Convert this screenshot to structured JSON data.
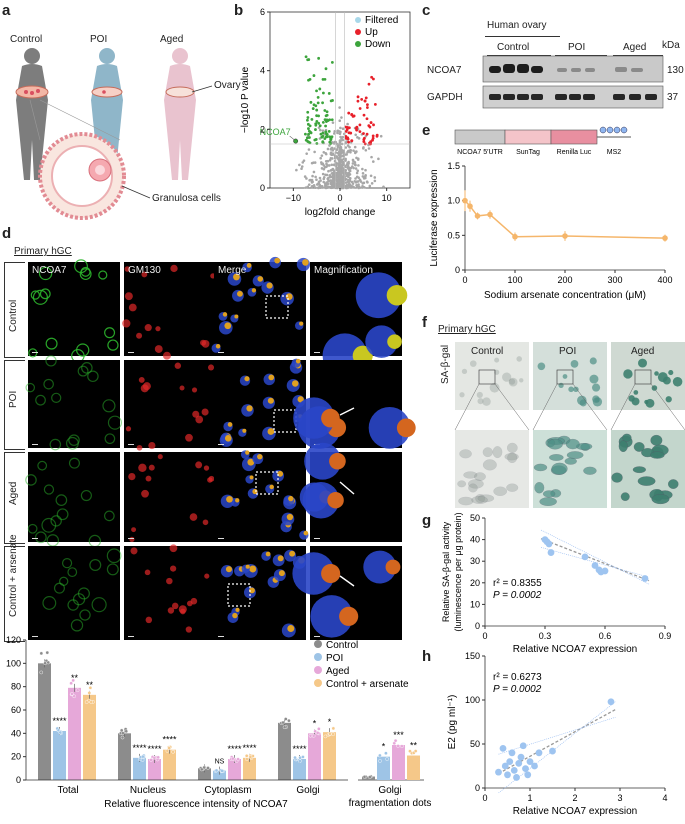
{
  "panels": {
    "a": "a",
    "b": "b",
    "c": "c",
    "d": "d",
    "e": "e",
    "f": "f",
    "g": "g",
    "h": "h"
  },
  "panel_a": {
    "groups": [
      "Control",
      "POI",
      "Aged"
    ],
    "ovary_label": "Ovary",
    "granulosa_label": "Granulosa cells",
    "colors": {
      "control": "#7d7d7d",
      "poi": "#8fb6c9",
      "aged": "#e9c3cf"
    }
  },
  "panel_b": {
    "legend": [
      "Filtered",
      "Up",
      "Down"
    ],
    "legend_colors": [
      "#a8d8ea",
      "#e8202a",
      "#3ca43c"
    ],
    "gene_label": "NCOA7",
    "xlabel": "log2fold change",
    "ylabel": "−log10 P value",
    "x_ticks": [
      "−10",
      "0",
      "10"
    ],
    "y_ticks": [
      "0",
      "2",
      "4",
      "6"
    ]
  },
  "panel_c": {
    "title": "Human ovary",
    "groups": [
      "Control",
      "POI",
      "Aged"
    ],
    "kda_label": "kDa",
    "rows": [
      {
        "name": "NCOA7",
        "kda": "130"
      },
      {
        "name": "GAPDH",
        "kda": "37"
      }
    ]
  },
  "panel_d": {
    "title": "Primary hGC",
    "columns": [
      "NCOA7",
      "GM130",
      "Merge",
      "Magnification"
    ],
    "rows": [
      "Control",
      "POI",
      "Aged",
      "Control + arsenate"
    ]
  },
  "panel_e": {
    "construct": [
      "NCOA7 5′UTR",
      "SunTag",
      "Renilla Luc",
      "MS2"
    ],
    "xlabel": "Sodium arsenate concentration (μM)",
    "ylabel": "Luciferase expression",
    "x_ticks": [
      "0",
      "100",
      "200",
      "300",
      "400"
    ],
    "y_ticks": [
      "0",
      "0.5",
      "1.0",
      "1.5"
    ]
  },
  "panel_f": {
    "title": "Primary hGC",
    "row_label": "SA-β-gal",
    "columns": [
      "Control",
      "POI",
      "Aged"
    ]
  },
  "panel_g": {
    "r2": "r² = 0.8355",
    "p": "P = 0.0002",
    "xlabel": "Relative NCOA7 expression",
    "ylabel_1": "Relative SA-β-gal activity",
    "ylabel_2": "(luminescence per μg protein)",
    "x_ticks": [
      "0",
      "0.3",
      "0.6",
      "0.9"
    ],
    "y_ticks": [
      "0",
      "10",
      "20",
      "30",
      "40",
      "50"
    ]
  },
  "panel_h": {
    "r2": "r² = 0.6273",
    "p": "P = 0.0002",
    "xlabel": "Relative NCOA7 expression",
    "ylabel": "E2 (pg ml⁻¹)",
    "x_ticks": [
      "0",
      "1",
      "2",
      "3",
      "4"
    ],
    "y_ticks": [
      "0",
      "50",
      "100",
      "150"
    ]
  },
  "bar_legend": [
    "Control",
    "POI",
    "Aged",
    "Control + arsenate"
  ],
  "chart_data": [
    {
      "type": "scatter",
      "panel": "b",
      "xlabel": "log2fold change",
      "ylabel": "−log10 P value",
      "xlim": [
        -15,
        15
      ],
      "ylim": [
        0,
        6
      ],
      "highlight": {
        "label": "NCOA7",
        "x": -9.5,
        "y": 1.6
      },
      "series": [
        {
          "name": "Filtered",
          "color": "#a8d8ea"
        },
        {
          "name": "Up",
          "color": "#e8202a"
        },
        {
          "name": "Down",
          "color": "#3ca43c"
        }
      ]
    },
    {
      "type": "line",
      "panel": "e",
      "xlabel": "Sodium arsenate concentration (μM)",
      "ylabel": "Luciferase expression",
      "xlim": [
        0,
        400
      ],
      "ylim": [
        0,
        1.5
      ],
      "x": [
        0,
        10,
        25,
        50,
        100,
        200,
        400
      ],
      "y": [
        1.0,
        0.92,
        0.78,
        0.8,
        0.48,
        0.49,
        0.46
      ],
      "err": [
        0.15,
        0.08,
        0.05,
        0.06,
        0.06,
        0.07,
        0.05
      ]
    },
    {
      "type": "scatter",
      "panel": "g",
      "xlabel": "Relative NCOA7 expression",
      "xlim": [
        0,
        0.9
      ],
      "ylim": [
        0,
        50
      ],
      "x": [
        0.3,
        0.32,
        0.33,
        0.5,
        0.55,
        0.57,
        0.58,
        0.6,
        0.8,
        0.31
      ],
      "y": [
        40,
        38,
        34,
        32,
        28,
        26,
        25,
        25.5,
        22,
        39
      ],
      "fit": {
        "slope": -36.0,
        "intercept": 50.5
      }
    },
    {
      "type": "scatter",
      "panel": "h",
      "xlabel": "Relative NCOA7 expression",
      "ylabel": "E2 (pg ml⁻¹)",
      "xlim": [
        0,
        4
      ],
      "ylim": [
        0,
        150
      ],
      "x": [
        0.3,
        0.4,
        0.45,
        0.5,
        0.55,
        0.6,
        0.65,
        0.7,
        0.75,
        0.8,
        0.85,
        0.9,
        0.95,
        1.0,
        1.1,
        1.2,
        1.5,
        2.8
      ],
      "y": [
        18,
        45,
        25,
        15,
        30,
        40,
        20,
        12,
        28,
        35,
        48,
        22,
        15,
        30,
        25,
        40,
        42,
        98
      ],
      "fit": {
        "slope": 28.0,
        "intercept": 8.0
      }
    },
    {
      "type": "bar",
      "panel": "d-quant",
      "categories": [
        "Total",
        "Nucleus",
        "Cytoplasm",
        "Golgi"
      ],
      "xlabel": "Relative fluorescence intensity of NCOA7",
      "ylim": [
        0,
        120
      ],
      "y_ticks": [
        "0",
        "20",
        "40",
        "60",
        "80",
        "100",
        "120"
      ],
      "series": [
        {
          "name": "Control",
          "color": "#8c8c8c",
          "values": [
            100,
            40,
            10,
            49
          ],
          "sig": [
            "",
            "",
            "",
            ""
          ]
        },
        {
          "name": "POI",
          "color": "#9ec4e6",
          "values": [
            42,
            19,
            8,
            18
          ],
          "sig": [
            "****",
            "****",
            "NS",
            "****"
          ]
        },
        {
          "name": "Aged",
          "color": "#e6a8d9",
          "values": [
            79,
            18,
            18,
            40
          ],
          "sig": [
            "**",
            "****",
            "****",
            "*"
          ]
        },
        {
          "name": "Control + arsenate",
          "color": "#f5c889",
          "values": [
            73,
            26,
            19,
            41
          ],
          "sig": [
            "**",
            "****",
            "****",
            "*"
          ]
        }
      ]
    },
    {
      "type": "bar",
      "panel": "d-golgi",
      "categories": [
        "Golgi fragmentation dots"
      ],
      "ylim": [
        0,
        120
      ],
      "series": [
        {
          "name": "Control",
          "color": "#8c8c8c",
          "values": [
            3
          ],
          "sig": [
            ""
          ]
        },
        {
          "name": "POI",
          "color": "#9ec4e6",
          "values": [
            20
          ],
          "sig": [
            "*"
          ]
        },
        {
          "name": "Aged",
          "color": "#e6a8d9",
          "values": [
            30
          ],
          "sig": [
            "***"
          ]
        },
        {
          "name": "Control + arsenate",
          "color": "#f5c889",
          "values": [
            21
          ],
          "sig": [
            "**"
          ]
        }
      ]
    }
  ]
}
